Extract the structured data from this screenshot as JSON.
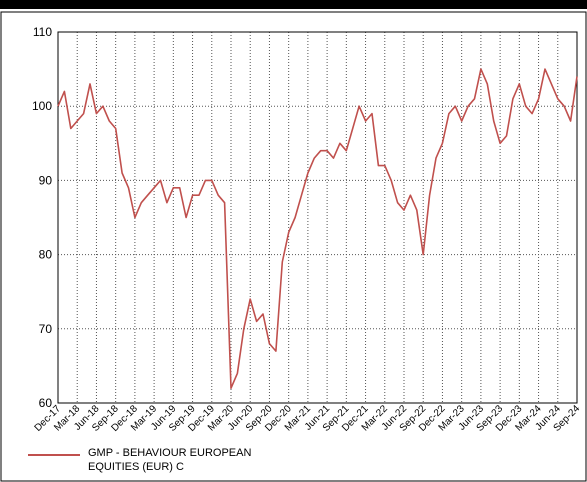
{
  "chart_data": {
    "type": "line",
    "x": [
      "Dec-17",
      "Jan-18",
      "Feb-18",
      "Mar-18",
      "Apr-18",
      "May-18",
      "Jun-18",
      "Jul-18",
      "Aug-18",
      "Sep-18",
      "Oct-18",
      "Nov-18",
      "Dec-18",
      "Jan-19",
      "Feb-19",
      "Mar-19",
      "Apr-19",
      "May-19",
      "Jun-19",
      "Jul-19",
      "Aug-19",
      "Sep-19",
      "Oct-19",
      "Nov-19",
      "Dec-19",
      "Jan-20",
      "Feb-20",
      "Mar-20",
      "Apr-20",
      "May-20",
      "Jun-20",
      "Jul-20",
      "Aug-20",
      "Sep-20",
      "Oct-20",
      "Nov-20",
      "Dec-20",
      "Jan-21",
      "Feb-21",
      "Mar-21",
      "Apr-21",
      "May-21",
      "Jun-21",
      "Jul-21",
      "Aug-21",
      "Sep-21",
      "Oct-21",
      "Nov-21",
      "Dec-21",
      "Jan-22",
      "Feb-22",
      "Mar-22",
      "Apr-22",
      "May-22",
      "Jun-22",
      "Jul-22",
      "Aug-22",
      "Sep-22",
      "Oct-22",
      "Nov-22",
      "Dec-22",
      "Jan-23",
      "Feb-23",
      "Mar-23",
      "Apr-23",
      "May-23",
      "Jun-23",
      "Jul-23",
      "Aug-23",
      "Sep-23",
      "Oct-23",
      "Nov-23",
      "Dec-23",
      "Jan-24",
      "Feb-24",
      "Mar-24",
      "Apr-24",
      "May-24",
      "Jun-24",
      "Jul-24",
      "Aug-24",
      "Sep-24"
    ],
    "series": [
      {
        "name": "GMP - BEHAVIOUR EUROPEAN EQUITIES (EUR) C",
        "color": "#c0504d",
        "values": [
          100,
          102,
          97,
          98,
          99,
          103,
          99,
          100,
          98,
          97,
          91,
          89,
          85,
          87,
          88,
          89,
          90,
          87,
          89,
          89,
          85,
          88,
          88,
          90,
          90,
          88,
          87,
          62,
          64,
          70,
          74,
          71,
          72,
          68,
          67,
          79,
          83,
          85,
          88,
          91,
          93,
          94,
          94,
          93,
          95,
          94,
          97,
          100,
          98,
          99,
          92,
          92,
          90,
          87,
          86,
          88,
          86,
          80,
          88,
          93,
          95,
          99,
          100,
          98,
          100,
          101,
          105,
          103,
          98,
          95,
          96,
          101,
          103,
          100,
          99,
          101,
          105,
          103,
          101,
          100,
          98,
          104
        ]
      }
    ],
    "xticks": [
      "Dec-17",
      "Mar-18",
      "Jun-18",
      "Sep-18",
      "Dec-18",
      "Mar-19",
      "Jun-19",
      "Sep-19",
      "Dec-19",
      "Mar-20",
      "Jun-20",
      "Sep-20",
      "Dec-20",
      "Mar-21",
      "Jun-21",
      "Sep-21",
      "Dec-21",
      "Mar-22",
      "Jun-22",
      "Sep-22",
      "Dec-22",
      "Mar-23",
      "Jun-23",
      "Sep-23",
      "Dec-23",
      "Mar-24",
      "Jun-24",
      "Sep-24"
    ],
    "ylim": [
      60,
      110
    ],
    "yticks": [
      60,
      70,
      80,
      90,
      100,
      110
    ],
    "grid": true,
    "legend": "bottom"
  }
}
